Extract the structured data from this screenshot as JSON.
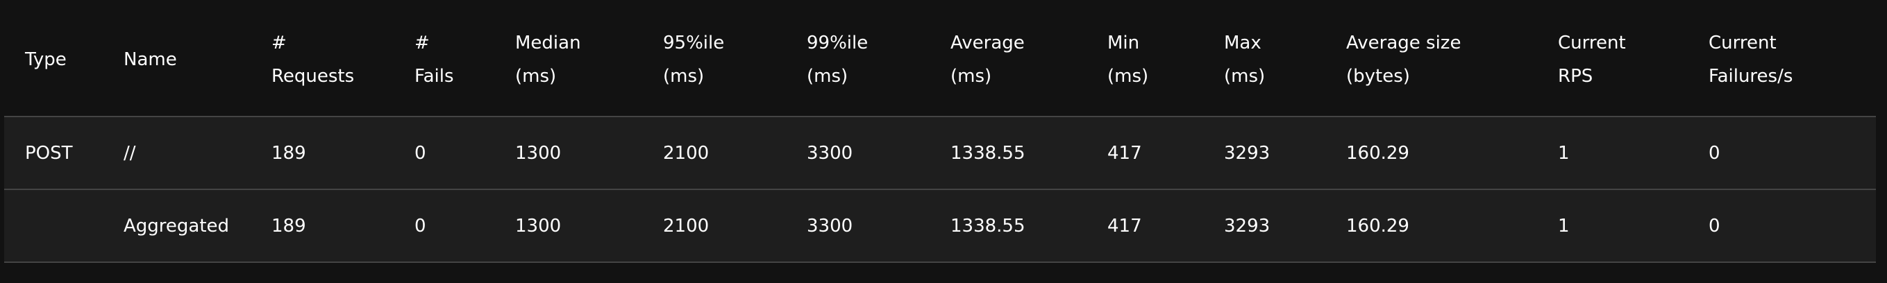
{
  "table": {
    "headers": [
      {
        "line1": "Type",
        "line2": ""
      },
      {
        "line1": "Name",
        "line2": ""
      },
      {
        "line1": "#",
        "line2": "Requests"
      },
      {
        "line1": "#",
        "line2": "Fails"
      },
      {
        "line1": "Median",
        "line2": "(ms)"
      },
      {
        "line1": "95%ile",
        "line2": "(ms)"
      },
      {
        "line1": "99%ile",
        "line2": "(ms)"
      },
      {
        "line1": "Average",
        "line2": "(ms)"
      },
      {
        "line1": "Min",
        "line2": "(ms)"
      },
      {
        "line1": "Max",
        "line2": "(ms)"
      },
      {
        "line1": "Average size",
        "line2": "(bytes)"
      },
      {
        "line1": "Current",
        "line2": "RPS"
      },
      {
        "line1": "Current",
        "line2": "Failures/s"
      }
    ],
    "rows": [
      {
        "type": "POST",
        "name": "//",
        "requests": "189",
        "fails": "0",
        "median": "1300",
        "p95": "2100",
        "p99": "3300",
        "average": "1338.55",
        "min": "417",
        "max": "3293",
        "avg_size": "160.29",
        "current_rps": "1",
        "current_failures": "0"
      },
      {
        "type": "",
        "name": "Aggregated",
        "requests": "189",
        "fails": "0",
        "median": "1300",
        "p95": "2100",
        "p99": "3300",
        "average": "1338.55",
        "min": "417",
        "max": "3293",
        "avg_size": "160.29",
        "current_rps": "1",
        "current_failures": "0"
      }
    ]
  }
}
